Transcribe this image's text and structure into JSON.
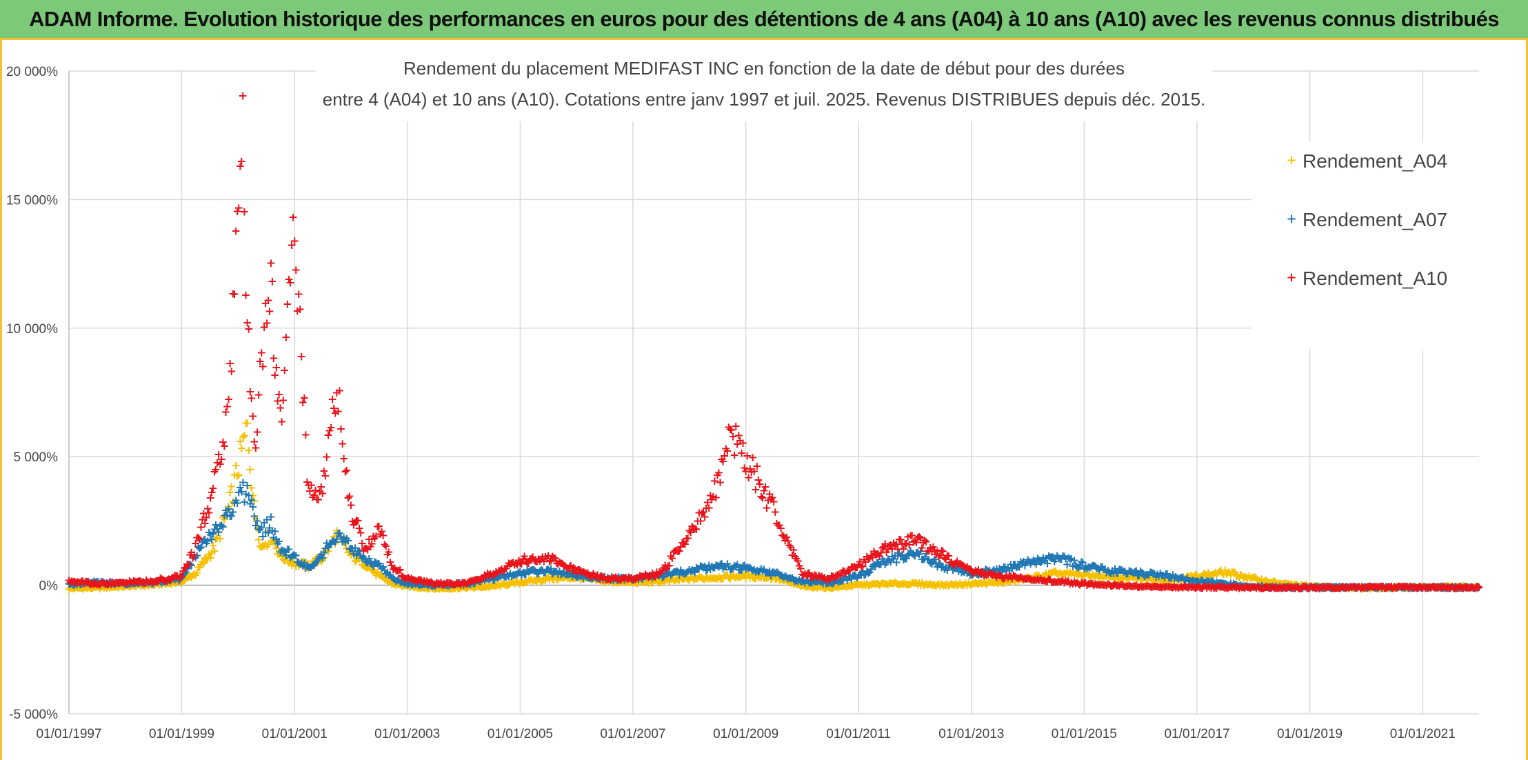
{
  "banner": {
    "title": "ADAM Informe. Evolution historique des performances en euros pour des détentions de 4 ans (A04) à 10 ans (A10) avec les revenus connus distribués"
  },
  "chart_data": {
    "type": "scatter",
    "title_lines": [
      "Rendement du placement MEDIFAST INC en fonction de la date de début pour des durées",
      "entre 4 (A04) et 10 ans (A10). Cotations entre janv 1997 et juil. 2025. Revenus DISTRIBUES depuis déc. 2015."
    ],
    "xlabel": "",
    "ylabel": "",
    "x_axis": {
      "type": "date",
      "range": [
        "1997-01-01",
        "2022-01-01"
      ],
      "tick_labels": [
        "01/01/1997",
        "01/01/1999",
        "01/01/2001",
        "01/01/2003",
        "01/01/2005",
        "01/01/2007",
        "01/01/2009",
        "01/01/2011",
        "01/01/2013",
        "01/01/2015",
        "01/01/2017",
        "01/01/2019",
        "01/01/2021"
      ]
    },
    "y_axis": {
      "range": [
        -5000,
        20000
      ],
      "ticks": [
        -5000,
        0,
        5000,
        10000,
        15000,
        20000
      ],
      "tick_labels": [
        "-5 000%",
        "0%",
        "5 000%",
        "10 000%",
        "15 000%",
        "20 000%"
      ],
      "unit": "%"
    },
    "grid": true,
    "legend_position": "top-right",
    "marker": "+",
    "series": [
      {
        "name": "Rendement_A04",
        "color": "#f5c000",
        "points": [
          [
            "1997-01-01",
            -80
          ],
          [
            "1997-07-01",
            -50
          ],
          [
            "1998-01-01",
            0
          ],
          [
            "1998-07-01",
            60
          ],
          [
            "1999-01-01",
            180
          ],
          [
            "1999-04-01",
            500
          ],
          [
            "1999-08-01",
            1500
          ],
          [
            "1999-11-01",
            3000
          ],
          [
            "2000-01-15",
            5000
          ],
          [
            "2000-03-01",
            6200
          ],
          [
            "2000-04-15",
            3000
          ],
          [
            "2000-06-01",
            1500
          ],
          [
            "2000-08-01",
            2000
          ],
          [
            "2000-10-01",
            1200
          ],
          [
            "2001-01-01",
            900
          ],
          [
            "2001-04-01",
            800
          ],
          [
            "2001-07-01",
            1100
          ],
          [
            "2001-10-01",
            2000
          ],
          [
            "2002-01-01",
            1200
          ],
          [
            "2002-04-01",
            900
          ],
          [
            "2002-07-01",
            400
          ],
          [
            "2002-10-01",
            100
          ],
          [
            "2003-01-01",
            0
          ],
          [
            "2003-07-01",
            -80
          ],
          [
            "2004-01-01",
            -50
          ],
          [
            "2004-07-01",
            0
          ],
          [
            "2005-01-01",
            150
          ],
          [
            "2005-07-01",
            300
          ],
          [
            "2006-01-01",
            350
          ],
          [
            "2006-07-01",
            200
          ],
          [
            "2007-01-01",
            150
          ],
          [
            "2007-07-01",
            200
          ],
          [
            "2008-01-01",
            300
          ],
          [
            "2008-07-01",
            350
          ],
          [
            "2009-01-01",
            400
          ],
          [
            "2009-07-01",
            350
          ],
          [
            "2010-01-01",
            0
          ],
          [
            "2010-07-01",
            -50
          ],
          [
            "2011-01-01",
            50
          ],
          [
            "2011-07-01",
            100
          ],
          [
            "2012-01-01",
            100
          ],
          [
            "2012-07-01",
            50
          ],
          [
            "2013-01-01",
            100
          ],
          [
            "2013-07-01",
            150
          ],
          [
            "2014-01-01",
            300
          ],
          [
            "2014-07-01",
            500
          ],
          [
            "2015-01-01",
            450
          ],
          [
            "2015-07-01",
            350
          ],
          [
            "2016-01-01",
            300
          ],
          [
            "2016-07-01",
            250
          ],
          [
            "2017-01-01",
            400
          ],
          [
            "2017-07-01",
            550
          ],
          [
            "2018-01-01",
            300
          ],
          [
            "2018-07-01",
            100
          ],
          [
            "2019-01-01",
            0
          ],
          [
            "2019-07-01",
            -40
          ],
          [
            "2020-01-01",
            -60
          ],
          [
            "2020-07-01",
            -40
          ],
          [
            "2021-01-01",
            -30
          ],
          [
            "2021-07-01",
            -20
          ],
          [
            "2022-01-01",
            -20
          ]
        ]
      },
      {
        "name": "Rendement_A07",
        "color": "#1f77b4",
        "points": [
          [
            "1997-01-01",
            100
          ],
          [
            "1997-07-01",
            150
          ],
          [
            "1998-01-01",
            100
          ],
          [
            "1998-07-01",
            150
          ],
          [
            "1999-01-01",
            300
          ],
          [
            "1999-04-01",
            1200
          ],
          [
            "1999-08-01",
            2200
          ],
          [
            "1999-11-01",
            2800
          ],
          [
            "2000-01-15",
            3500
          ],
          [
            "2000-03-01",
            3800
          ],
          [
            "2000-04-15",
            2500
          ],
          [
            "2000-06-01",
            2200
          ],
          [
            "2000-08-01",
            2400
          ],
          [
            "2000-10-01",
            1500
          ],
          [
            "2001-01-01",
            1100
          ],
          [
            "2001-04-01",
            700
          ],
          [
            "2001-07-01",
            1300
          ],
          [
            "2001-10-01",
            2000
          ],
          [
            "2002-01-01",
            1500
          ],
          [
            "2002-04-01",
            1000
          ],
          [
            "2002-07-01",
            800
          ],
          [
            "2002-10-01",
            300
          ],
          [
            "2003-01-01",
            100
          ],
          [
            "2003-07-01",
            50
          ],
          [
            "2004-01-01",
            100
          ],
          [
            "2004-07-01",
            300
          ],
          [
            "2005-01-01",
            500
          ],
          [
            "2005-07-01",
            600
          ],
          [
            "2006-01-01",
            400
          ],
          [
            "2006-07-01",
            300
          ],
          [
            "2007-01-01",
            300
          ],
          [
            "2007-07-01",
            400
          ],
          [
            "2008-01-01",
            600
          ],
          [
            "2008-07-01",
            800
          ],
          [
            "2009-01-01",
            700
          ],
          [
            "2009-07-01",
            500
          ],
          [
            "2010-01-01",
            200
          ],
          [
            "2010-07-01",
            150
          ],
          [
            "2011-01-01",
            400
          ],
          [
            "2011-07-01",
            1000
          ],
          [
            "2012-01-01",
            1300
          ],
          [
            "2012-07-01",
            800
          ],
          [
            "2013-01-01",
            500
          ],
          [
            "2013-07-01",
            600
          ],
          [
            "2014-01-01",
            900
          ],
          [
            "2014-07-01",
            1100
          ],
          [
            "2015-01-01",
            800
          ],
          [
            "2015-07-01",
            600
          ],
          [
            "2016-01-01",
            500
          ],
          [
            "2016-07-01",
            400
          ],
          [
            "2017-01-01",
            200
          ],
          [
            "2017-07-01",
            100
          ],
          [
            "2018-01-01",
            0
          ],
          [
            "2018-07-01",
            -50
          ],
          [
            "2019-01-01",
            -40
          ],
          [
            "2019-07-01",
            -40
          ],
          [
            "2020-01-01",
            -40
          ],
          [
            "2020-07-01",
            -40
          ],
          [
            "2021-01-01",
            -40
          ],
          [
            "2021-07-01",
            -40
          ],
          [
            "2022-01-01",
            -40
          ]
        ]
      },
      {
        "name": "Rendement_A10",
        "color": "#e8141b",
        "points": [
          [
            "1997-01-01",
            200
          ],
          [
            "1997-07-01",
            100
          ],
          [
            "1998-01-01",
            150
          ],
          [
            "1998-07-01",
            200
          ],
          [
            "1999-01-01",
            400
          ],
          [
            "1999-04-01",
            1500
          ],
          [
            "1999-08-01",
            4000
          ],
          [
            "1999-11-01",
            7000
          ],
          [
            "2000-01-15",
            15500
          ],
          [
            "2000-02-01",
            18100
          ],
          [
            "2000-03-01",
            10000
          ],
          [
            "2000-04-15",
            5000
          ],
          [
            "2000-06-01",
            9000
          ],
          [
            "2000-08-01",
            11500
          ],
          [
            "2000-10-01",
            6500
          ],
          [
            "2001-01-01",
            13800
          ],
          [
            "2001-02-15",
            9000
          ],
          [
            "2001-04-01",
            3500
          ],
          [
            "2001-07-01",
            4000
          ],
          [
            "2001-10-01",
            7700
          ],
          [
            "2002-01-01",
            3000
          ],
          [
            "2002-04-01",
            1500
          ],
          [
            "2002-07-01",
            2200
          ],
          [
            "2002-10-01",
            800
          ],
          [
            "2003-01-01",
            300
          ],
          [
            "2003-07-01",
            100
          ],
          [
            "2004-01-01",
            100
          ],
          [
            "2004-07-01",
            500
          ],
          [
            "2005-01-01",
            1000
          ],
          [
            "2005-07-01",
            1100
          ],
          [
            "2006-01-01",
            600
          ],
          [
            "2006-07-01",
            300
          ],
          [
            "2007-01-01",
            300
          ],
          [
            "2007-07-01",
            500
          ],
          [
            "2008-01-01",
            2000
          ],
          [
            "2008-07-01",
            4000
          ],
          [
            "2008-10-01",
            6000
          ],
          [
            "2009-01-01",
            5000
          ],
          [
            "2009-07-01",
            3000
          ],
          [
            "2010-01-01",
            500
          ],
          [
            "2010-07-01",
            300
          ],
          [
            "2011-01-01",
            800
          ],
          [
            "2011-07-01",
            1500
          ],
          [
            "2012-01-01",
            1800
          ],
          [
            "2012-07-01",
            1200
          ],
          [
            "2013-01-01",
            600
          ],
          [
            "2013-07-01",
            400
          ],
          [
            "2014-01-01",
            300
          ],
          [
            "2014-07-01",
            200
          ],
          [
            "2015-01-01",
            100
          ],
          [
            "2015-07-01",
            50
          ],
          [
            "2016-01-01",
            0
          ],
          [
            "2016-07-01",
            -20
          ],
          [
            "2017-01-01",
            -30
          ],
          [
            "2017-07-01",
            -40
          ],
          [
            "2018-01-01",
            -40
          ],
          [
            "2018-07-01",
            -40
          ],
          [
            "2019-01-01",
            -40
          ],
          [
            "2019-07-01",
            -40
          ],
          [
            "2020-01-01",
            -40
          ],
          [
            "2020-07-01",
            -40
          ],
          [
            "2021-01-01",
            -40
          ],
          [
            "2021-07-01",
            -40
          ],
          [
            "2022-01-01",
            -40
          ]
        ]
      }
    ]
  }
}
